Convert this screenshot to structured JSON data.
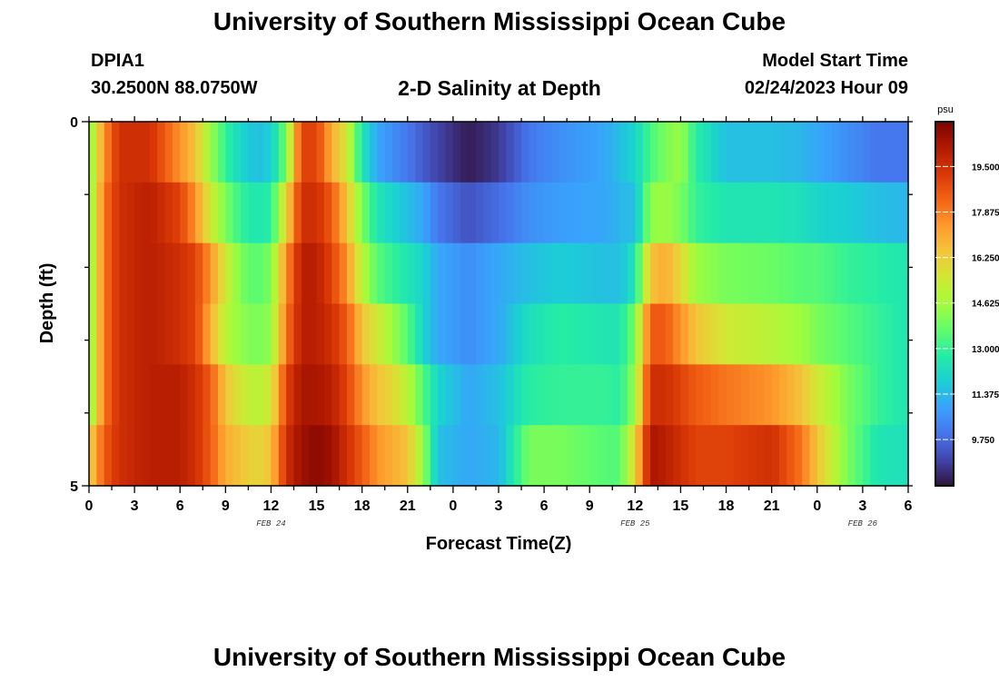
{
  "header": {
    "title": "University of Southern Mississippi Ocean Cube",
    "station": "DPIA1",
    "coords": "30.2500N  88.0750W",
    "subtitle": "2-D Salinity at Depth",
    "model_start_label": "Model Start Time",
    "model_start_value": "02/24/2023 Hour 09",
    "title_repeat": "University of Southern Mississippi Ocean Cube"
  },
  "colormap": [
    "#30123b",
    "#4145ab",
    "#4675ed",
    "#39a2fc",
    "#1bcfd4",
    "#24eca6",
    "#61fc6c",
    "#a4fc3b",
    "#d1e834",
    "#f3c63a",
    "#fe9b2d",
    "#f36315",
    "#d93806",
    "#b11901",
    "#7a0403"
  ],
  "chart_data": {
    "type": "heatmap",
    "xlabel": "Forecast Time(Z)",
    "ylabel": "Depth (ft)",
    "x_tick_labels": [
      "0",
      "3",
      "6",
      "9",
      "12",
      "15",
      "18",
      "21",
      "0",
      "3",
      "6",
      "9",
      "12",
      "15",
      "18",
      "21",
      "0",
      "3",
      "6"
    ],
    "x_range_hours": [
      0,
      54
    ],
    "date_labels": [
      {
        "hour": 12,
        "text": "FEB 24"
      },
      {
        "hour": 36,
        "text": "FEB 25"
      },
      {
        "hour": 51,
        "text": "FEB 26"
      }
    ],
    "y_tick_labels": [
      "0",
      "5"
    ],
    "ylim": [
      0,
      5
    ],
    "depth_levels_ft": [
      0,
      1,
      2,
      3,
      4,
      5
    ],
    "colorbar": {
      "unit": "psu",
      "range": [
        8.1,
        21.1
      ],
      "tick_labels": [
        "19.500",
        "17.875",
        "16.250",
        "14.625",
        "13.000",
        "11.375",
        "9.750"
      ],
      "tick_values": [
        19.5,
        17.875,
        16.25,
        14.625,
        13.0,
        11.375,
        9.75
      ]
    },
    "salinity_keyframes": [
      {
        "hour": 0,
        "values": [
          14.0,
          14.0,
          14.0,
          14.0,
          14.0,
          16.0
        ]
      },
      {
        "hour": 1,
        "values": [
          17.5,
          18.0,
          18.0,
          18.0,
          18.0,
          18.5
        ]
      },
      {
        "hour": 2,
        "values": [
          19.5,
          19.5,
          19.5,
          19.5,
          19.5,
          19.5
        ]
      },
      {
        "hour": 4,
        "values": [
          19.5,
          20.0,
          20.0,
          20.0,
          20.0,
          20.0
        ]
      },
      {
        "hour": 6,
        "values": [
          17.5,
          19.0,
          19.5,
          19.5,
          20.0,
          20.0
        ]
      },
      {
        "hour": 7,
        "values": [
          16.5,
          17.5,
          19.0,
          19.0,
          19.5,
          19.5
        ]
      },
      {
        "hour": 8,
        "values": [
          14.5,
          15.5,
          17.5,
          17.0,
          18.5,
          18.5
        ]
      },
      {
        "hour": 9,
        "values": [
          13.0,
          14.0,
          15.5,
          15.0,
          16.5,
          17.0
        ]
      },
      {
        "hour": 10,
        "values": [
          12.0,
          13.0,
          14.0,
          14.3,
          15.5,
          16.5
        ]
      },
      {
        "hour": 11,
        "values": [
          11.5,
          12.5,
          13.5,
          14.0,
          15.0,
          16.0
        ]
      },
      {
        "hour": 12,
        "values": [
          11.8,
          12.8,
          14.0,
          14.3,
          15.5,
          16.5
        ]
      },
      {
        "hour": 13,
        "values": [
          14.0,
          16.0,
          17.5,
          18.0,
          19.0,
          19.5
        ]
      },
      {
        "hour": 14,
        "values": [
          19.0,
          19.5,
          20.0,
          20.0,
          20.3,
          20.5
        ]
      },
      {
        "hour": 15,
        "values": [
          19.0,
          19.5,
          20.0,
          20.0,
          20.3,
          20.8
        ]
      },
      {
        "hour": 16,
        "values": [
          17.0,
          18.5,
          19.0,
          19.5,
          20.0,
          20.5
        ]
      },
      {
        "hour": 17,
        "values": [
          15.5,
          16.5,
          17.5,
          18.5,
          19.0,
          19.5
        ]
      },
      {
        "hour": 18,
        "values": [
          12.5,
          14.0,
          15.0,
          16.5,
          17.5,
          18.5
        ]
      },
      {
        "hour": 19,
        "values": [
          11.0,
          12.5,
          13.5,
          15.5,
          16.5,
          17.5
        ]
      },
      {
        "hour": 20,
        "values": [
          10.5,
          12.0,
          13.0,
          14.5,
          16.0,
          17.0
        ]
      },
      {
        "hour": 21,
        "values": [
          10.0,
          11.5,
          12.5,
          13.5,
          15.0,
          16.5
        ]
      },
      {
        "hour": 22,
        "values": [
          9.5,
          11.0,
          12.0,
          12.0,
          13.5,
          14.5
        ]
      },
      {
        "hour": 23,
        "values": [
          9.0,
          10.0,
          11.0,
          11.0,
          12.0,
          11.5
        ]
      },
      {
        "hour": 25,
        "values": [
          8.3,
          9.3,
          10.5,
          10.5,
          11.0,
          11.0
        ]
      },
      {
        "hour": 27,
        "values": [
          8.8,
          9.8,
          11.0,
          11.0,
          11.5,
          11.3
        ]
      },
      {
        "hour": 29,
        "values": [
          10.0,
          10.5,
          11.5,
          12.3,
          12.8,
          14.0
        ]
      },
      {
        "hour": 31,
        "values": [
          10.5,
          10.8,
          11.8,
          12.8,
          13.0,
          14.0
        ]
      },
      {
        "hour": 34,
        "values": [
          11.0,
          11.0,
          11.5,
          12.5,
          13.0,
          13.5
        ]
      },
      {
        "hour": 35,
        "values": [
          11.5,
          11.3,
          11.5,
          12.5,
          12.8,
          13.5
        ]
      },
      {
        "hour": 36,
        "values": [
          12.0,
          11.5,
          12.5,
          14.0,
          14.5,
          16.0
        ]
      },
      {
        "hour": 37,
        "values": [
          13.3,
          14.3,
          16.5,
          18.5,
          19.5,
          20.3
        ]
      },
      {
        "hour": 38,
        "values": [
          14.0,
          14.5,
          17.0,
          18.5,
          19.5,
          20.0
        ]
      },
      {
        "hour": 39,
        "values": [
          14.5,
          14.0,
          16.0,
          17.5,
          19.0,
          19.5
        ]
      },
      {
        "hour": 40,
        "values": [
          12.8,
          13.0,
          14.5,
          16.5,
          18.5,
          19.0
        ]
      },
      {
        "hour": 42,
        "values": [
          11.5,
          12.5,
          14.0,
          15.5,
          18.0,
          19.0
        ]
      },
      {
        "hour": 45,
        "values": [
          11.5,
          12.5,
          13.8,
          15.0,
          17.5,
          19.5
        ]
      },
      {
        "hour": 47,
        "values": [
          11.3,
          12.3,
          13.5,
          14.5,
          16.5,
          18.0
        ]
      },
      {
        "hour": 48,
        "values": [
          11.0,
          12.0,
          13.5,
          14.0,
          15.5,
          16.5
        ]
      },
      {
        "hour": 50,
        "values": [
          10.5,
          11.8,
          13.0,
          13.5,
          14.0,
          14.0
        ]
      },
      {
        "hour": 52,
        "values": [
          10.0,
          11.5,
          12.8,
          13.0,
          13.0,
          12.5
        ]
      },
      {
        "hour": 54,
        "values": [
          10.0,
          11.3,
          12.5,
          12.5,
          12.5,
          12.3
        ]
      }
    ]
  }
}
